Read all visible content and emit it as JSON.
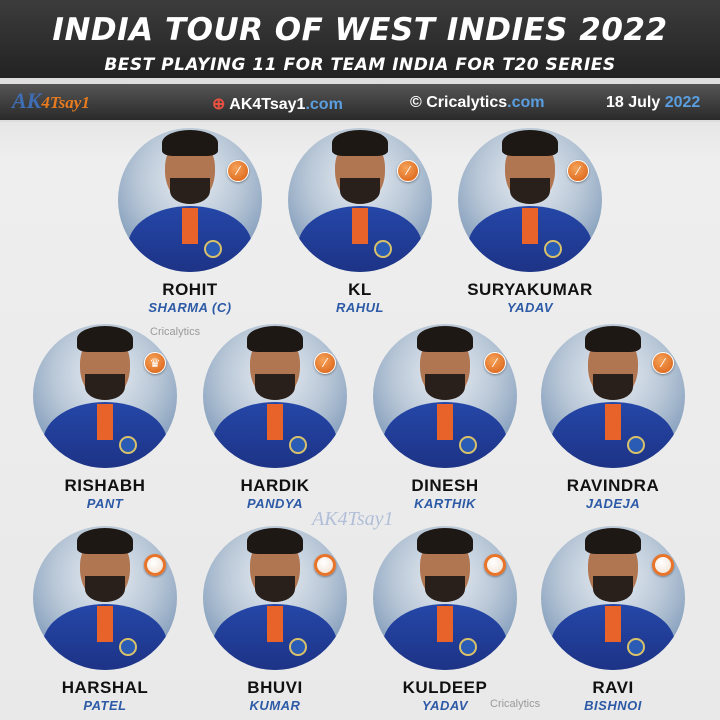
{
  "header": {
    "title": "INDIA TOUR OF WEST INDIES 2022",
    "subtitle": "BEST PLAYING 11 FOR TEAM INDIA FOR T20 SERIES"
  },
  "infobar": {
    "logo_prefix": "AK",
    "logo_suffix": "4Tsay1",
    "site1_name": "AK4Tsay1",
    "site1_tld": ".com",
    "site2_name": "© Cricalytics",
    "site2_tld": ".com",
    "date_day": "18 July",
    "date_year": "2022"
  },
  "watermark": {
    "text": "Cricalytics",
    "logo": "AK4Tsay1"
  },
  "players": [
    {
      "first": "ROHIT",
      "last": "SHARMA (C)",
      "role": "batter"
    },
    {
      "first": "KL",
      "last": "RAHUL",
      "role": "batter"
    },
    {
      "first": "SURYAKUMAR",
      "last": "YADAV",
      "role": "batter"
    },
    {
      "first": "RISHABH",
      "last": "PANT",
      "role": "wicketkeeper"
    },
    {
      "first": "HARDIK",
      "last": "PANDYA",
      "role": "all-rounder"
    },
    {
      "first": "DINESH",
      "last": "KARTHIK",
      "role": "batter"
    },
    {
      "first": "RAVINDRA",
      "last": "JADEJA",
      "role": "all-rounder"
    },
    {
      "first": "HARSHAL",
      "last": "PATEL",
      "role": "bowler"
    },
    {
      "first": "BHUVI",
      "last": "KUMAR",
      "role": "bowler"
    },
    {
      "first": "KULDEEP",
      "last": "YADAV",
      "role": "bowler"
    },
    {
      "first": "RAVI",
      "last": "BISHNOI",
      "role": "bowler"
    }
  ],
  "colors": {
    "accent_orange": "#e8742a",
    "surname_blue": "#2d5aa6",
    "header_bg": "#2c2c2c"
  }
}
